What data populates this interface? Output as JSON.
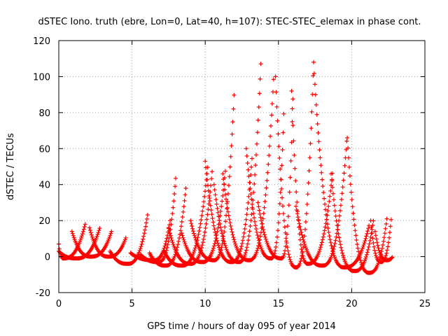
{
  "chart_data": {
    "type": "scatter",
    "title": "dSTEC Iono. truth (ebre, Lon=0, Lat=40, h=107): STEC-STEC_elemax in phase cont.",
    "xlabel": "GPS time / hours of day 095 of year 2014",
    "ylabel": "dSTEC  / TECUs",
    "xlim": [
      0,
      25
    ],
    "ylim": [
      -20,
      120
    ],
    "xticks": [
      0,
      5,
      10,
      15,
      20,
      25
    ],
    "yticks": [
      -20,
      0,
      20,
      40,
      60,
      80,
      100,
      120
    ],
    "grid": true,
    "marker": "+",
    "color": "#ff0000",
    "arcs": [
      {
        "start": 0.0,
        "min_t": 0.3,
        "end": 1.8,
        "min_v": -1,
        "start_v": 7,
        "end_v": 18
      },
      {
        "start": 0.0,
        "min_t": 1.2,
        "end": 2.8,
        "min_v": -1,
        "start_v": 3,
        "end_v": 16
      },
      {
        "start": 0.9,
        "min_t": 2.2,
        "end": 3.6,
        "min_v": 0,
        "start_v": 14,
        "end_v": 14
      },
      {
        "start": 2.1,
        "min_t": 3.4,
        "end": 4.6,
        "min_v": 0,
        "start_v": 16,
        "end_v": 11
      },
      {
        "start": 3.5,
        "min_t": 4.7,
        "end": 6.1,
        "min_v": -4,
        "start_v": 3,
        "end_v": 25
      },
      {
        "start": 5.6,
        "min_t": 6.8,
        "end": 8.0,
        "min_v": -3,
        "start_v": 1,
        "end_v": 45
      },
      {
        "start": 6.2,
        "min_t": 7.3,
        "end": 8.7,
        "min_v": -5,
        "start_v": 2,
        "end_v": 40
      },
      {
        "start": 4.9,
        "min_t": 6.5,
        "end": 7.6,
        "min_v": -2,
        "start_v": 2,
        "end_v": 20
      },
      {
        "start": 7.2,
        "min_t": 8.4,
        "end": 10.2,
        "min_v": -5,
        "start_v": 3,
        "end_v": 52
      },
      {
        "start": 7.5,
        "min_t": 9.0,
        "end": 10.5,
        "min_v": -4,
        "start_v": 16,
        "end_v": 50
      },
      {
        "start": 8.4,
        "min_t": 9.8,
        "end": 11.4,
        "min_v": -3,
        "start_v": 13,
        "end_v": 50
      },
      {
        "start": 9.0,
        "min_t": 10.6,
        "end": 12.0,
        "min_v": -2,
        "start_v": 20,
        "end_v": 95
      },
      {
        "start": 10.0,
        "min_t": 11.8,
        "end": 13.2,
        "min_v": -3,
        "start_v": 53,
        "end_v": 55
      },
      {
        "start": 10.6,
        "min_t": 12.3,
        "end": 13.8,
        "min_v": -3,
        "start_v": 40,
        "end_v": 108
      },
      {
        "start": 11.2,
        "min_t": 13.0,
        "end": 14.7,
        "min_v": -2,
        "start_v": 46,
        "end_v": 104
      },
      {
        "start": 12.8,
        "min_t": 14.5,
        "end": 15.4,
        "min_v": -1,
        "start_v": 60,
        "end_v": 88
      },
      {
        "start": 13.6,
        "min_t": 15.2,
        "end": 16.0,
        "min_v": -1,
        "start_v": 30,
        "end_v": 92
      },
      {
        "start": 14.8,
        "min_t": 16.2,
        "end": 17.4,
        "min_v": -6,
        "start_v": 100,
        "end_v": 109
      },
      {
        "start": 15.9,
        "min_t": 17.0,
        "end": 18.7,
        "min_v": -4,
        "start_v": 92,
        "end_v": 47
      },
      {
        "start": 16.2,
        "min_t": 18.0,
        "end": 19.7,
        "min_v": -5,
        "start_v": 28,
        "end_v": 68
      },
      {
        "start": 17.4,
        "min_t": 19.5,
        "end": 21.2,
        "min_v": -6,
        "start_v": 108,
        "end_v": 18
      },
      {
        "start": 18.6,
        "min_t": 20.2,
        "end": 21.5,
        "min_v": -8,
        "start_v": 46,
        "end_v": 21
      },
      {
        "start": 19.7,
        "min_t": 21.2,
        "end": 22.4,
        "min_v": -9,
        "start_v": 66,
        "end_v": 21
      },
      {
        "start": 21.3,
        "min_t": 22.0,
        "end": 22.7,
        "min_v": -3,
        "start_v": 20,
        "end_v": 21
      },
      {
        "start": 21.6,
        "min_t": 22.4,
        "end": 22.8,
        "min_v": -2,
        "start_v": 14,
        "end_v": 0
      }
    ]
  }
}
